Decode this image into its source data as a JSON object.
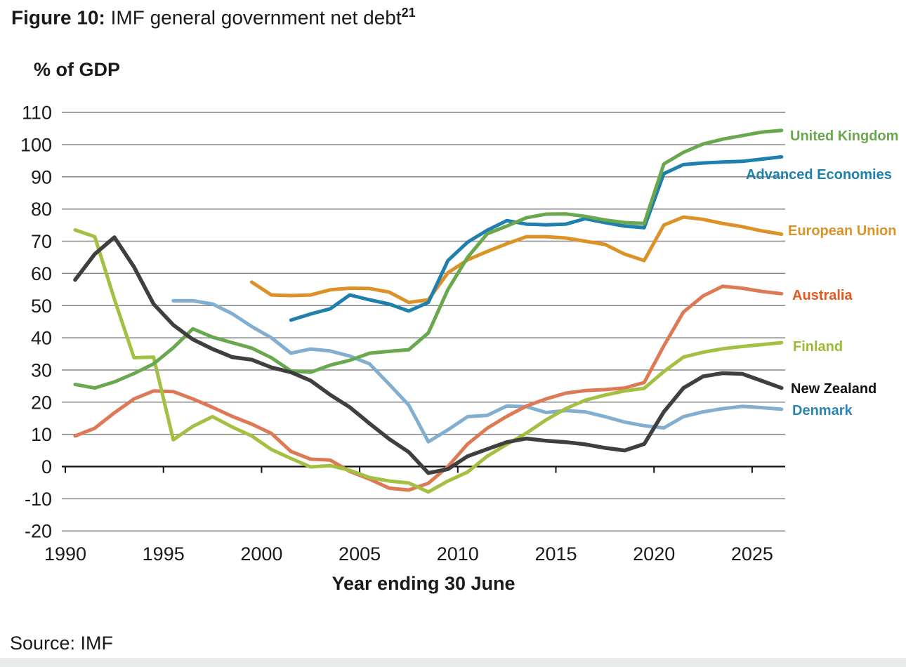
{
  "header": {
    "figure_label": "Figure 10:",
    "title_rest": " IMF general government net debt",
    "superscript": "21"
  },
  "footer": {
    "source": "Source: IMF"
  },
  "chart_data": {
    "type": "line",
    "title": "Figure 10: IMF general government net debt",
    "ylabel": "% of GDP",
    "xlabel": "Year ending 30 June",
    "x_axis": {
      "ticks": [
        1990,
        1995,
        2000,
        2005,
        2010,
        2015,
        2020,
        2025
      ],
      "note": "annual data for years ending 30 June, 1990-2026"
    },
    "y_axis": {
      "ticks": [
        110,
        100,
        90,
        80,
        70,
        60,
        50,
        40,
        30,
        20,
        10,
        0,
        -10,
        -20
      ],
      "ylim": [
        -20,
        110
      ],
      "grid": true
    },
    "legend_position": "right-of-line-ends",
    "series": [
      {
        "name": "United Kingdom",
        "color": "#6aa84f",
        "label_color": "#6aa84f",
        "start_year": 1990,
        "values": [
          25.5,
          24.4,
          26.3,
          28.9,
          31.9,
          36.9,
          42.8,
          40.2,
          38.5,
          36.8,
          33.8,
          29.7,
          29.3,
          31.5,
          33.0,
          35.2,
          35.8,
          36.3,
          41.5,
          55.0,
          65.0,
          72.3,
          74.7,
          77.3,
          78.4,
          78.5,
          77.7,
          76.6,
          75.8,
          75.5,
          94.0,
          97.6,
          100.2,
          101.7,
          102.8,
          103.9,
          104.4
        ]
      },
      {
        "name": "Advanced Economies",
        "color": "#1f7fad",
        "label_color": "#1f7fad",
        "start_year": 2001,
        "values": [
          45.5,
          47.4,
          49.0,
          53.3,
          51.8,
          50.5,
          48.3,
          51.0,
          64.0,
          69.7,
          73.4,
          76.4,
          75.3,
          75.1,
          75.3,
          77.0,
          75.8,
          74.7,
          74.2,
          91.0,
          93.8,
          94.3,
          94.6,
          94.8,
          95.5,
          96.2
        ]
      },
      {
        "name": "European Union",
        "color": "#db9327",
        "label_color": "#db9327",
        "start_year": 1999,
        "values": [
          57.3,
          53.3,
          53.1,
          53.3,
          54.9,
          55.4,
          55.3,
          54.2,
          51.0,
          51.8,
          60.2,
          64.2,
          66.8,
          69.2,
          71.4,
          71.4,
          71.0,
          70.0,
          69.0,
          66.0,
          64.0,
          75.0,
          77.5,
          76.8,
          75.5,
          74.5,
          73.2,
          72.2
        ]
      },
      {
        "name": "Australia",
        "color": "#dd7a55",
        "label_color": "#e2581f",
        "start_year": 1990,
        "values": [
          9.5,
          11.9,
          16.7,
          21.0,
          23.5,
          23.3,
          21.0,
          18.4,
          15.6,
          13.2,
          10.3,
          4.7,
          2.3,
          2.0,
          -1.5,
          -3.9,
          -6.7,
          -7.3,
          -5.2,
          0.0,
          7.0,
          11.9,
          15.6,
          18.8,
          21.0,
          22.8,
          23.6,
          23.9,
          24.4,
          26.1,
          37.5,
          48.0,
          53.0,
          56.0,
          55.4,
          54.4,
          53.7
        ]
      },
      {
        "name": "Finland",
        "color": "#a4c043",
        "label_color": "#9cbb35",
        "start_year": 1990,
        "values": [
          73.5,
          71.4,
          52.0,
          33.8,
          34.0,
          8.3,
          12.5,
          15.5,
          12.3,
          9.5,
          5.3,
          2.5,
          -0.1,
          0.3,
          -1.2,
          -3.4,
          -4.5,
          -5.1,
          -7.9,
          -4.5,
          -1.7,
          3.2,
          6.9,
          10.4,
          14.5,
          18.0,
          20.6,
          22.2,
          23.5,
          24.3,
          29.5,
          34.0,
          35.5,
          36.6,
          37.3,
          37.9,
          38.5
        ]
      },
      {
        "name": "New Zealand",
        "color": "#3f3f3f",
        "label_color": "#111111",
        "start_year": 1990,
        "values": [
          58.0,
          66.0,
          71.2,
          62.0,
          50.5,
          44.0,
          39.5,
          36.5,
          34.0,
          33.2,
          30.8,
          29.3,
          26.7,
          22.3,
          18.4,
          13.4,
          8.6,
          4.5,
          -2.0,
          -0.8,
          3.2,
          5.4,
          7.6,
          8.7,
          8.0,
          7.6,
          6.9,
          5.8,
          5.0,
          7.0,
          17.0,
          24.4,
          28.0,
          29.0,
          28.8,
          26.6,
          24.4
        ]
      },
      {
        "name": "Denmark",
        "color": "#82aed0",
        "label_color": "#2d84b5",
        "start_year": 1995,
        "values": [
          51.5,
          51.5,
          50.5,
          47.5,
          43.5,
          40.0,
          35.2,
          36.5,
          35.9,
          34.3,
          31.9,
          25.6,
          19.1,
          7.7,
          11.4,
          15.5,
          15.9,
          18.8,
          18.6,
          16.8,
          17.4,
          17.0,
          15.5,
          13.8,
          12.7,
          12.0,
          15.5,
          17.0,
          18.0,
          18.7,
          18.3,
          17.8
        ]
      }
    ]
  }
}
